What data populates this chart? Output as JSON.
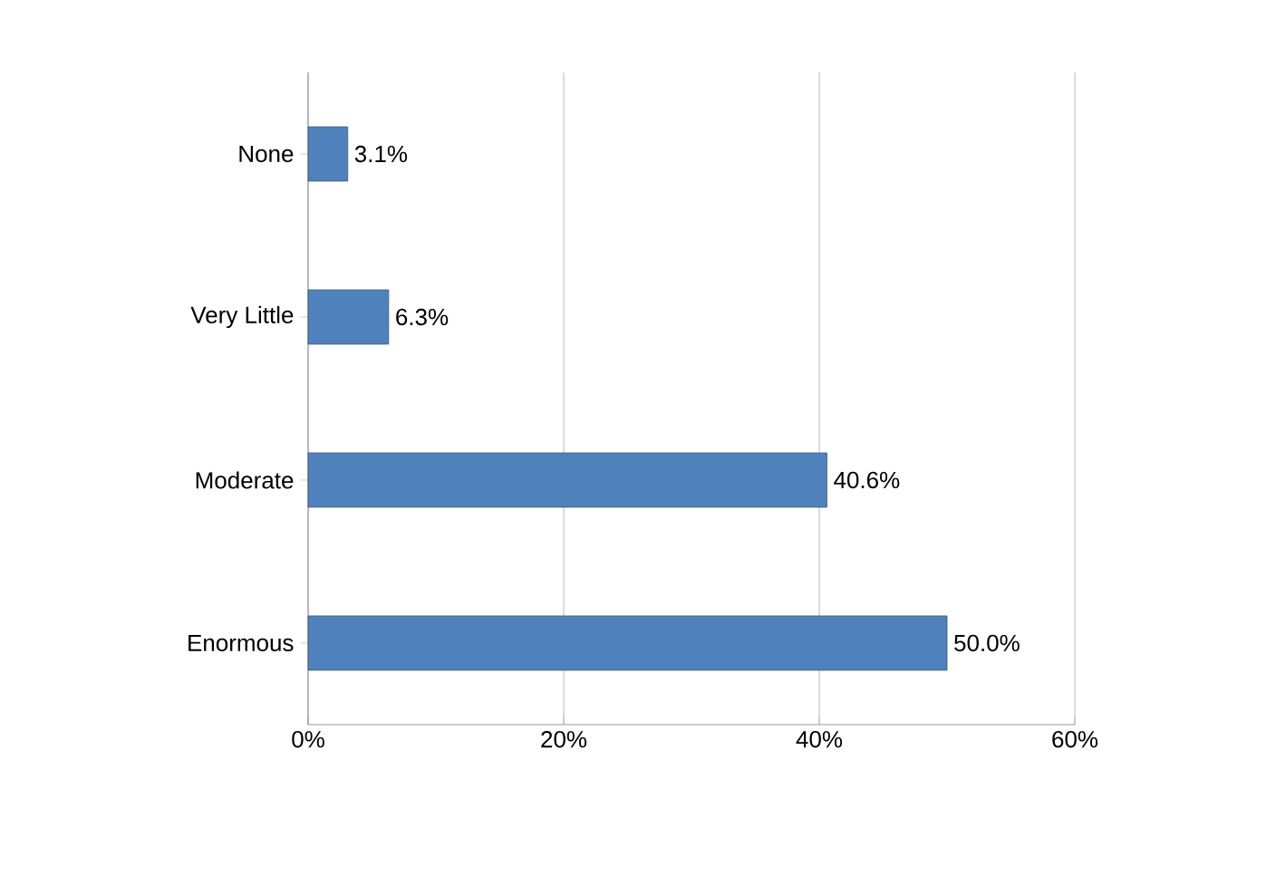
{
  "chart_data": {
    "type": "bar",
    "orientation": "horizontal",
    "categories": [
      "None",
      "Very Little",
      "Moderate",
      "Enormous"
    ],
    "values": [
      3.1,
      6.3,
      40.6,
      50.0
    ],
    "value_labels": [
      "3.1%",
      "6.3%",
      "40.6%",
      "50.0%"
    ],
    "color": "#4f81bd",
    "xlim": [
      0,
      60
    ],
    "xticks": [
      {
        "value": 0,
        "label": "0%"
      },
      {
        "value": 20,
        "label": "20%"
      },
      {
        "value": 40,
        "label": "40%"
      },
      {
        "value": 60,
        "label": "60%"
      }
    ],
    "grid": "x"
  }
}
